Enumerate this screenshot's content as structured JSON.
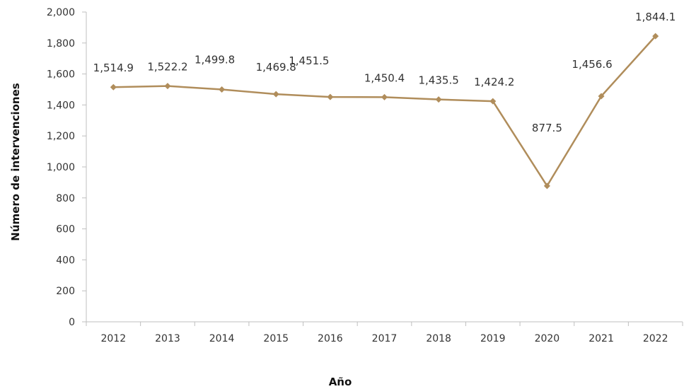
{
  "chart_data": {
    "type": "line",
    "title": "",
    "xlabel": "Año",
    "ylabel": "Número de intervenciones",
    "categories": [
      "2012",
      "2013",
      "2014",
      "2015",
      "2016",
      "2017",
      "2018",
      "2019",
      "2020",
      "2021",
      "2022"
    ],
    "values": [
      1514.9,
      1522.2,
      1499.8,
      1469.8,
      1451.5,
      1450.4,
      1435.5,
      1424.2,
      877.5,
      1456.6,
      1844.1
    ],
    "data_labels": [
      "1,514.9",
      "1,522.2",
      "1,499.8",
      "1,469.8",
      "1,451.5",
      "1,450.4",
      "1,435.5",
      "1,424.2",
      "877.5",
      "1,456.6",
      "1,844.1"
    ],
    "ylim": [
      0,
      2000
    ],
    "yticks": [
      0,
      200,
      400,
      600,
      800,
      1000,
      1200,
      1400,
      1600,
      1800,
      2000
    ],
    "ytick_labels": [
      "0",
      "200",
      "400",
      "600",
      "800",
      "1,000",
      "1,200",
      "1,400",
      "1,600",
      "1,800",
      "2,000"
    ],
    "grid": false,
    "marker": "diamond",
    "colors": {
      "line": "#b08d5b",
      "axis": "#bfbfbf"
    }
  }
}
